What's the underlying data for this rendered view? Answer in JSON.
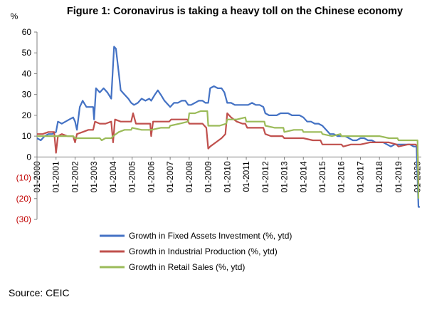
{
  "chart_data": {
    "type": "line",
    "title": "Figure 1: Coronavirus is taking a heavy toll on the Chinese economy",
    "ylabel": "%",
    "ylim": [
      -30,
      60
    ],
    "yticks": [
      60,
      50,
      40,
      30,
      20,
      10,
      0,
      -10,
      -20,
      -30
    ],
    "ytick_labels": [
      "60",
      "50",
      "40",
      "30",
      "20",
      "10",
      "0",
      "(10)",
      "(20)",
      "(30)"
    ],
    "negative_tick_color": "#c00000",
    "xlim": [
      2000,
      2020.2
    ],
    "xticks": [
      "01-2000",
      "01-2001",
      "01-2002",
      "01-2003",
      "01-2004",
      "01-2005",
      "01-2006",
      "01-2007",
      "01-2008",
      "01-2009",
      "01-2010",
      "01-2011",
      "01-2012",
      "01-2013",
      "01-2014",
      "01-2015",
      "01-2016",
      "01-2017",
      "01-2018",
      "01-2019",
      "01-2020"
    ],
    "legend_position": "bottom",
    "grid": false,
    "series": [
      {
        "name": "Growth in Fixed Assets Investment (%, ytd)",
        "color": "#4472c4",
        "points": [
          [
            2000.0,
            9
          ],
          [
            2000.2,
            8
          ],
          [
            2000.4,
            10
          ],
          [
            2000.6,
            11
          ],
          [
            2000.8,
            11
          ],
          [
            2001.0,
            12
          ],
          [
            2001.1,
            17
          ],
          [
            2001.3,
            16
          ],
          [
            2001.5,
            17
          ],
          [
            2001.7,
            18
          ],
          [
            2001.9,
            19
          ],
          [
            2002.0,
            17
          ],
          [
            2002.1,
            13
          ],
          [
            2002.25,
            24
          ],
          [
            2002.4,
            27
          ],
          [
            2002.6,
            24
          ],
          [
            2002.8,
            24
          ],
          [
            2002.95,
            24
          ],
          [
            2003.0,
            18
          ],
          [
            2003.1,
            33
          ],
          [
            2003.3,
            31
          ],
          [
            2003.5,
            33
          ],
          [
            2003.7,
            31
          ],
          [
            2003.9,
            28
          ],
          [
            2004.05,
            53
          ],
          [
            2004.15,
            52
          ],
          [
            2004.3,
            40
          ],
          [
            2004.4,
            32
          ],
          [
            2004.6,
            30
          ],
          [
            2004.8,
            28
          ],
          [
            2004.95,
            26
          ],
          [
            2005.1,
            25
          ],
          [
            2005.3,
            26
          ],
          [
            2005.5,
            28
          ],
          [
            2005.7,
            27
          ],
          [
            2005.9,
            28
          ],
          [
            2006.0,
            27
          ],
          [
            2006.2,
            30
          ],
          [
            2006.35,
            32
          ],
          [
            2006.5,
            30
          ],
          [
            2006.7,
            27
          ],
          [
            2006.9,
            25
          ],
          [
            2007.0,
            24
          ],
          [
            2007.2,
            26
          ],
          [
            2007.4,
            26
          ],
          [
            2007.6,
            27
          ],
          [
            2007.8,
            27
          ],
          [
            2007.95,
            25
          ],
          [
            2008.1,
            25
          ],
          [
            2008.3,
            26
          ],
          [
            2008.5,
            27
          ],
          [
            2008.7,
            27
          ],
          [
            2008.85,
            26
          ],
          [
            2009.0,
            26
          ],
          [
            2009.1,
            33
          ],
          [
            2009.3,
            34
          ],
          [
            2009.5,
            33
          ],
          [
            2009.7,
            33
          ],
          [
            2009.85,
            31
          ],
          [
            2010.0,
            26
          ],
          [
            2010.2,
            26
          ],
          [
            2010.4,
            25
          ],
          [
            2010.6,
            25
          ],
          [
            2010.8,
            25
          ],
          [
            2010.95,
            25
          ],
          [
            2011.1,
            25
          ],
          [
            2011.3,
            26
          ],
          [
            2011.5,
            25
          ],
          [
            2011.7,
            25
          ],
          [
            2011.9,
            24
          ],
          [
            2012.0,
            21
          ],
          [
            2012.2,
            20
          ],
          [
            2012.4,
            20
          ],
          [
            2012.6,
            20
          ],
          [
            2012.8,
            21
          ],
          [
            2013.0,
            21
          ],
          [
            2013.2,
            21
          ],
          [
            2013.4,
            20
          ],
          [
            2013.6,
            20
          ],
          [
            2013.8,
            20
          ],
          [
            2014.0,
            19
          ],
          [
            2014.2,
            17
          ],
          [
            2014.4,
            17
          ],
          [
            2014.6,
            16
          ],
          [
            2014.8,
            16
          ],
          [
            2015.0,
            15
          ],
          [
            2015.2,
            13
          ],
          [
            2015.4,
            11
          ],
          [
            2015.6,
            11
          ],
          [
            2015.8,
            10
          ],
          [
            2016.0,
            10
          ],
          [
            2016.2,
            10
          ],
          [
            2016.4,
            9
          ],
          [
            2016.6,
            8
          ],
          [
            2016.8,
            8
          ],
          [
            2017.0,
            9
          ],
          [
            2017.2,
            9
          ],
          [
            2017.4,
            8
          ],
          [
            2017.6,
            8
          ],
          [
            2017.8,
            7
          ],
          [
            2018.0,
            7
          ],
          [
            2018.2,
            7
          ],
          [
            2018.4,
            6
          ],
          [
            2018.6,
            5
          ],
          [
            2018.8,
            6
          ],
          [
            2019.0,
            6
          ],
          [
            2019.2,
            6
          ],
          [
            2019.4,
            6
          ],
          [
            2019.6,
            6
          ],
          [
            2019.8,
            5
          ],
          [
            2019.95,
            5
          ],
          [
            2020.05,
            -24
          ],
          [
            2020.12,
            -24
          ]
        ]
      },
      {
        "name": "Growth in Industrial Production (%, ytd)",
        "color": "#c0504d",
        "points": [
          [
            2000.0,
            11
          ],
          [
            2000.3,
            11
          ],
          [
            2000.6,
            12
          ],
          [
            2000.9,
            12
          ],
          [
            2001.0,
            2
          ],
          [
            2001.1,
            10
          ],
          [
            2001.3,
            11
          ],
          [
            2001.6,
            10
          ],
          [
            2001.9,
            10
          ],
          [
            2002.0,
            7
          ],
          [
            2002.1,
            11
          ],
          [
            2002.4,
            12
          ],
          [
            2002.7,
            13
          ],
          [
            2002.95,
            13
          ],
          [
            2003.05,
            17
          ],
          [
            2003.3,
            16
          ],
          [
            2003.6,
            16
          ],
          [
            2003.9,
            17
          ],
          [
            2004.0,
            7
          ],
          [
            2004.1,
            18
          ],
          [
            2004.4,
            17
          ],
          [
            2004.7,
            17
          ],
          [
            2004.95,
            17
          ],
          [
            2005.05,
            21
          ],
          [
            2005.2,
            16
          ],
          [
            2005.5,
            16
          ],
          [
            2005.8,
            16
          ],
          [
            2005.95,
            16
          ],
          [
            2006.0,
            10
          ],
          [
            2006.1,
            17
          ],
          [
            2006.4,
            17
          ],
          [
            2006.7,
            17
          ],
          [
            2006.95,
            17
          ],
          [
            2007.05,
            18
          ],
          [
            2007.3,
            18
          ],
          [
            2007.6,
            18
          ],
          [
            2007.9,
            18
          ],
          [
            2008.0,
            16
          ],
          [
            2008.1,
            16
          ],
          [
            2008.4,
            16
          ],
          [
            2008.7,
            16
          ],
          [
            2008.9,
            14
          ],
          [
            2009.0,
            4
          ],
          [
            2009.1,
            5
          ],
          [
            2009.4,
            7
          ],
          [
            2009.7,
            9
          ],
          [
            2009.9,
            11
          ],
          [
            2010.0,
            21
          ],
          [
            2010.2,
            19
          ],
          [
            2010.5,
            17
          ],
          [
            2010.8,
            16
          ],
          [
            2010.95,
            16
          ],
          [
            2011.05,
            14
          ],
          [
            2011.3,
            14
          ],
          [
            2011.6,
            14
          ],
          [
            2011.9,
            14
          ],
          [
            2012.0,
            11
          ],
          [
            2012.3,
            10
          ],
          [
            2012.6,
            10
          ],
          [
            2012.9,
            10
          ],
          [
            2013.0,
            9
          ],
          [
            2013.5,
            9
          ],
          [
            2013.9,
            9
          ],
          [
            2014.0,
            9
          ],
          [
            2014.5,
            8
          ],
          [
            2014.9,
            8
          ],
          [
            2015.0,
            6
          ],
          [
            2015.5,
            6
          ],
          [
            2016.0,
            6
          ],
          [
            2016.1,
            5
          ],
          [
            2016.5,
            6
          ],
          [
            2016.9,
            6
          ],
          [
            2017.0,
            6
          ],
          [
            2017.5,
            7
          ],
          [
            2017.9,
            7
          ],
          [
            2018.0,
            7
          ],
          [
            2018.5,
            7
          ],
          [
            2018.9,
            6
          ],
          [
            2019.0,
            5
          ],
          [
            2019.5,
            6
          ],
          [
            2019.9,
            6
          ],
          [
            2020.0,
            5
          ],
          [
            2020.05,
            -13
          ]
        ]
      },
      {
        "name": "Growth in Retail Sales (%, ytd)",
        "color": "#9bbb59",
        "points": [
          [
            2000.0,
            10
          ],
          [
            2000.3,
            10
          ],
          [
            2000.6,
            10
          ],
          [
            2000.9,
            10
          ],
          [
            2001.0,
            10
          ],
          [
            2001.3,
            10
          ],
          [
            2001.6,
            10
          ],
          [
            2001.9,
            10
          ],
          [
            2002.0,
            9
          ],
          [
            2002.3,
            9
          ],
          [
            2002.6,
            9
          ],
          [
            2002.95,
            9
          ],
          [
            2003.0,
            9
          ],
          [
            2003.3,
            9
          ],
          [
            2003.4,
            8
          ],
          [
            2003.6,
            9
          ],
          [
            2003.9,
            9
          ],
          [
            2004.0,
            10
          ],
          [
            2004.3,
            12
          ],
          [
            2004.6,
            13
          ],
          [
            2004.95,
            13
          ],
          [
            2005.0,
            14
          ],
          [
            2005.5,
            13
          ],
          [
            2005.95,
            13
          ],
          [
            2006.0,
            13
          ],
          [
            2006.5,
            14
          ],
          [
            2006.95,
            14
          ],
          [
            2007.0,
            15
          ],
          [
            2007.5,
            16
          ],
          [
            2007.95,
            17
          ],
          [
            2008.0,
            21
          ],
          [
            2008.3,
            21
          ],
          [
            2008.6,
            22
          ],
          [
            2008.95,
            22
          ],
          [
            2009.0,
            15
          ],
          [
            2009.3,
            15
          ],
          [
            2009.6,
            15
          ],
          [
            2009.95,
            16
          ],
          [
            2010.0,
            18
          ],
          [
            2010.5,
            18
          ],
          [
            2010.95,
            19
          ],
          [
            2011.0,
            17
          ],
          [
            2011.5,
            17
          ],
          [
            2011.95,
            17
          ],
          [
            2012.0,
            15
          ],
          [
            2012.5,
            14
          ],
          [
            2012.95,
            14
          ],
          [
            2013.0,
            12
          ],
          [
            2013.5,
            13
          ],
          [
            2013.95,
            13
          ],
          [
            2014.0,
            12
          ],
          [
            2014.5,
            12
          ],
          [
            2014.95,
            12
          ],
          [
            2015.0,
            11
          ],
          [
            2015.5,
            10
          ],
          [
            2015.95,
            11
          ],
          [
            2016.0,
            10
          ],
          [
            2016.5,
            10
          ],
          [
            2016.95,
            10
          ],
          [
            2017.0,
            10
          ],
          [
            2017.5,
            10
          ],
          [
            2017.95,
            10
          ],
          [
            2018.0,
            10
          ],
          [
            2018.5,
            9
          ],
          [
            2018.95,
            9
          ],
          [
            2019.0,
            8
          ],
          [
            2019.5,
            8
          ],
          [
            2019.95,
            8
          ],
          [
            2020.0,
            8
          ],
          [
            2020.05,
            -20
          ]
        ]
      }
    ]
  },
  "footer": {
    "source": "Source: CEIC"
  }
}
